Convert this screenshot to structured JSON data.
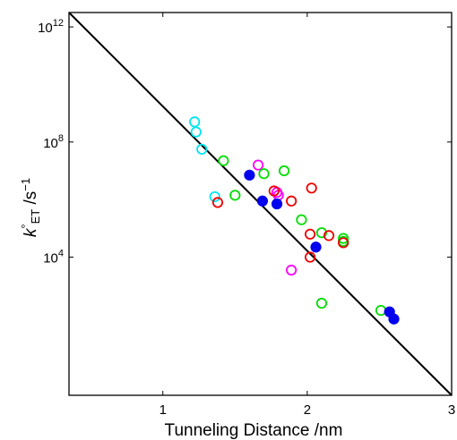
{
  "chart_data": {
    "type": "scatter",
    "title": "",
    "xlabel": "Tunneling Distance /nm",
    "ylabel": "k°ET /s−1",
    "ylabel_parts": {
      "k": "k",
      "sup": "°",
      "sub": "ET",
      "unit": " /s",
      "unit_sup": "−1"
    },
    "xlim": [
      0.35,
      3.0
    ],
    "ylim": [
      -0.8,
      12.5
    ],
    "y_scale": "log10",
    "grid": false,
    "x_ticks": [
      {
        "value": 1,
        "label": "1"
      },
      {
        "value": 2,
        "label": "2"
      },
      {
        "value": 3,
        "label": "3"
      }
    ],
    "y_ticks": [
      {
        "exponent": 4,
        "base": "10",
        "exp_label": "4"
      },
      {
        "exponent": 8,
        "base": "10",
        "exp_label": "8"
      },
      {
        "exponent": 12,
        "base": "10",
        "exp_label": "12"
      }
    ],
    "fit_line": {
      "x": [
        0.35,
        3.0
      ],
      "log10_y": [
        12.5,
        -0.8
      ]
    },
    "series": [
      {
        "color": "#00e5ee",
        "filled": false,
        "points": [
          {
            "x": 1.22,
            "log10_y": 8.7
          },
          {
            "x": 1.23,
            "log10_y": 8.35
          },
          {
            "x": 1.27,
            "log10_y": 7.75
          },
          {
            "x": 1.36,
            "log10_y": 6.1
          }
        ]
      },
      {
        "color": "#ff00ff",
        "filled": false,
        "points": [
          {
            "x": 1.66,
            "log10_y": 7.2
          },
          {
            "x": 1.79,
            "log10_y": 6.25
          },
          {
            "x": 1.8,
            "log10_y": 6.15
          },
          {
            "x": 1.89,
            "log10_y": 3.55
          }
        ]
      },
      {
        "color": "#00dd00",
        "filled": false,
        "points": [
          {
            "x": 1.42,
            "log10_y": 7.35
          },
          {
            "x": 1.5,
            "log10_y": 6.15
          },
          {
            "x": 1.7,
            "log10_y": 6.9
          },
          {
            "x": 1.84,
            "log10_y": 7.0
          },
          {
            "x": 1.96,
            "log10_y": 5.3
          },
          {
            "x": 2.1,
            "log10_y": 4.85
          },
          {
            "x": 2.25,
            "log10_y": 4.65
          },
          {
            "x": 2.25,
            "log10_y": 4.55
          },
          {
            "x": 2.1,
            "log10_y": 2.4
          },
          {
            "x": 2.51,
            "log10_y": 2.15
          }
        ]
      },
      {
        "color": "#ee0000",
        "filled": false,
        "points": [
          {
            "x": 1.38,
            "log10_y": 5.9
          },
          {
            "x": 1.77,
            "log10_y": 6.3
          },
          {
            "x": 1.89,
            "log10_y": 5.95
          },
          {
            "x": 2.03,
            "log10_y": 6.4
          },
          {
            "x": 2.02,
            "log10_y": 4.8
          },
          {
            "x": 2.15,
            "log10_y": 4.75
          },
          {
            "x": 2.25,
            "log10_y": 4.5
          },
          {
            "x": 2.02,
            "log10_y": 4.0
          }
        ]
      },
      {
        "color": "#0000ee",
        "filled": true,
        "points": [
          {
            "x": 1.6,
            "log10_y": 6.85
          },
          {
            "x": 1.69,
            "log10_y": 5.95
          },
          {
            "x": 1.79,
            "log10_y": 5.85
          },
          {
            "x": 2.06,
            "log10_y": 4.35
          },
          {
            "x": 2.57,
            "log10_y": 2.1
          },
          {
            "x": 2.6,
            "log10_y": 1.85
          }
        ]
      }
    ]
  }
}
